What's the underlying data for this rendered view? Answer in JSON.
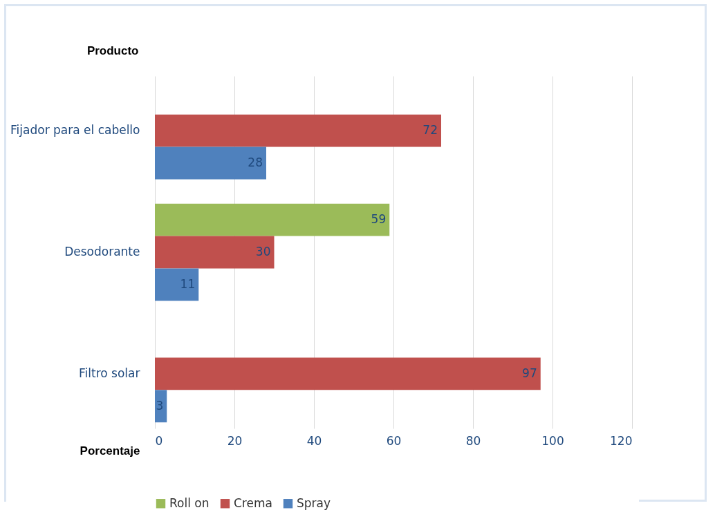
{
  "chart_data": {
    "type": "bar",
    "orientation": "horizontal",
    "ylabel": "Producto",
    "xlabel": "Porcentaje",
    "categories": [
      "Fijador para el cabello",
      "Desodorante",
      "Filtro solar"
    ],
    "series": [
      {
        "name": "Roll on",
        "color": "#9bbb59",
        "values": [
          null,
          59,
          null
        ]
      },
      {
        "name": "Crema",
        "color": "#c0504d",
        "values": [
          72,
          30,
          97
        ]
      },
      {
        "name": "Spray",
        "color": "#4f81bd",
        "values": [
          28,
          11,
          3
        ]
      }
    ],
    "xlim": [
      0,
      120
    ],
    "xticks": [
      0,
      20,
      40,
      60,
      80,
      100,
      120
    ],
    "grid": "x",
    "legend": "bottom",
    "data_labels": true
  }
}
